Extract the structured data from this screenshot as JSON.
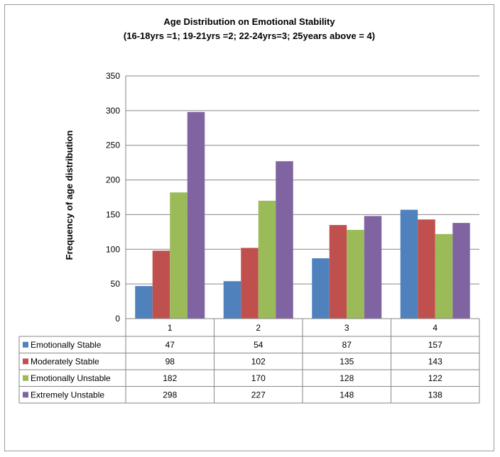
{
  "chart_data": {
    "type": "bar",
    "title": "Age Distribution on Emotional Stability",
    "subtitle": "(16-18yrs =1; 19-21yrs =2; 22-24yrs=3; 25years above = 4)",
    "xlabel": "",
    "ylabel": "Frequency of age distribution",
    "ylim": [
      0,
      350
    ],
    "ytick_step": 50,
    "grid": true,
    "legend": "data-table",
    "categories": [
      "1",
      "2",
      "3",
      "4"
    ],
    "series": [
      {
        "name": "Emotionally Stable",
        "color": "#4f81bd",
        "values": [
          47,
          54,
          87,
          157
        ]
      },
      {
        "name": "Moderately Stable",
        "color": "#c0504d",
        "values": [
          98,
          102,
          135,
          143
        ]
      },
      {
        "name": "Emotionally Unstable",
        "color": "#9bbb59",
        "values": [
          182,
          170,
          128,
          122
        ]
      },
      {
        "name": "Extremely Unstable",
        "color": "#8064a2",
        "values": [
          298,
          227,
          148,
          138
        ]
      }
    ]
  }
}
